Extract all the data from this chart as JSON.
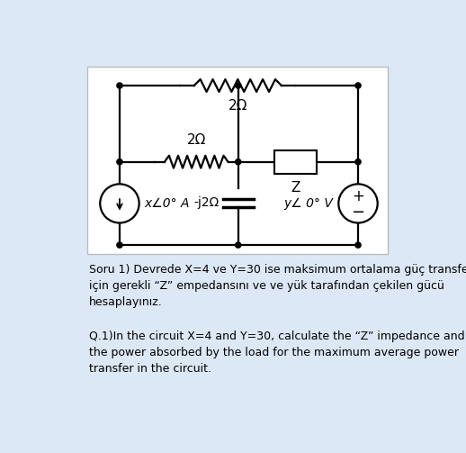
{
  "bg_color": "#dce8f5",
  "circuit_bg": "#ffffff",
  "text_color": "#000000",
  "title_text1": "Soru 1) Devrede X=4 ve Y=30 ise maksimum ortalama güç transferi\niçin gerekli “Z” empedansını ve ve yük tarafından çekilen gücü\nhesaplayınız.",
  "title_text2": "Q.1)In the circuit X=4 and Y=30, calculate the “Z” impedance and\nthe power absorbed by the load for the maximum average power\ntransfer in the circuit.",
  "label_2ohm_top": "2Ω",
  "label_2ohm_mid": "2Ω",
  "label_jX": "-j2Ω",
  "label_Z": "Z",
  "label_source_I": "x∠0° A",
  "label_source_V": "y∠ 0° V"
}
